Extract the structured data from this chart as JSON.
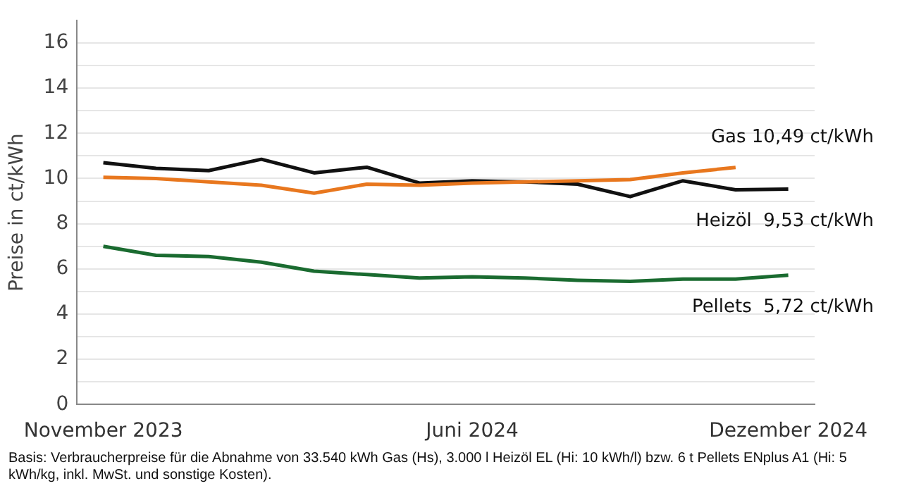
{
  "chart_data": {
    "type": "line",
    "ylabel": "Preise in ct/kWh",
    "categories": [
      "November 2023",
      null,
      null,
      null,
      null,
      null,
      null,
      "Juni 2024",
      null,
      null,
      null,
      null,
      null,
      "Dezember 2024"
    ],
    "series": [
      {
        "color": "#111111",
        "values": [
          10.7,
          10.45,
          10.35,
          10.85,
          10.25,
          10.5,
          9.8,
          9.9,
          9.85,
          9.75,
          9.2,
          9.9,
          9.5,
          9.53
        ]
      },
      {
        "color": "#e8771e",
        "values": [
          10.05,
          10.0,
          9.85,
          9.7,
          9.35,
          9.75,
          9.7,
          9.8,
          9.85,
          9.9,
          9.95,
          10.25,
          10.49,
          null
        ]
      },
      {
        "color": "#1a6b30",
        "values": [
          7.0,
          6.6,
          6.55,
          6.3,
          5.9,
          5.75,
          5.6,
          5.65,
          5.6,
          5.5,
          5.45,
          5.55,
          5.55,
          5.72
        ]
      }
    ],
    "ylim": [
      0,
      17
    ],
    "yticks": [
      0,
      {
        "value": 1,
        "label": null
      },
      2,
      {
        "value": 3,
        "label": null
      },
      4,
      {
        "value": 5,
        "label": null
      },
      6,
      {
        "value": 7,
        "label": null
      },
      8,
      {
        "value": 9,
        "label": null
      },
      10,
      {
        "value": 11,
        "label": null
      },
      12,
      {
        "value": 13,
        "label": null
      },
      14,
      {
        "value": 15,
        "label": null
      },
      16
    ],
    "grid": "y",
    "legend": false,
    "marker": "none",
    "line_style": "solid",
    "annotations": [
      "Heizöl  9,53 ct/kWh",
      "Gas 10,49 ct/kWh",
      "Pellets  5,72 ct/kWh",
      "Basis: Verbraucherpreise für die Abnahme von 33.540 kWh Gas (Hs), 3.000 l Heizöl EL (Hi: 10 kWh/l) bzw. 6 t Pellets ENplus A1 (Hi: 5 kWh/kg, inkl. MwSt. und sonstige Kosten)."
    ]
  }
}
